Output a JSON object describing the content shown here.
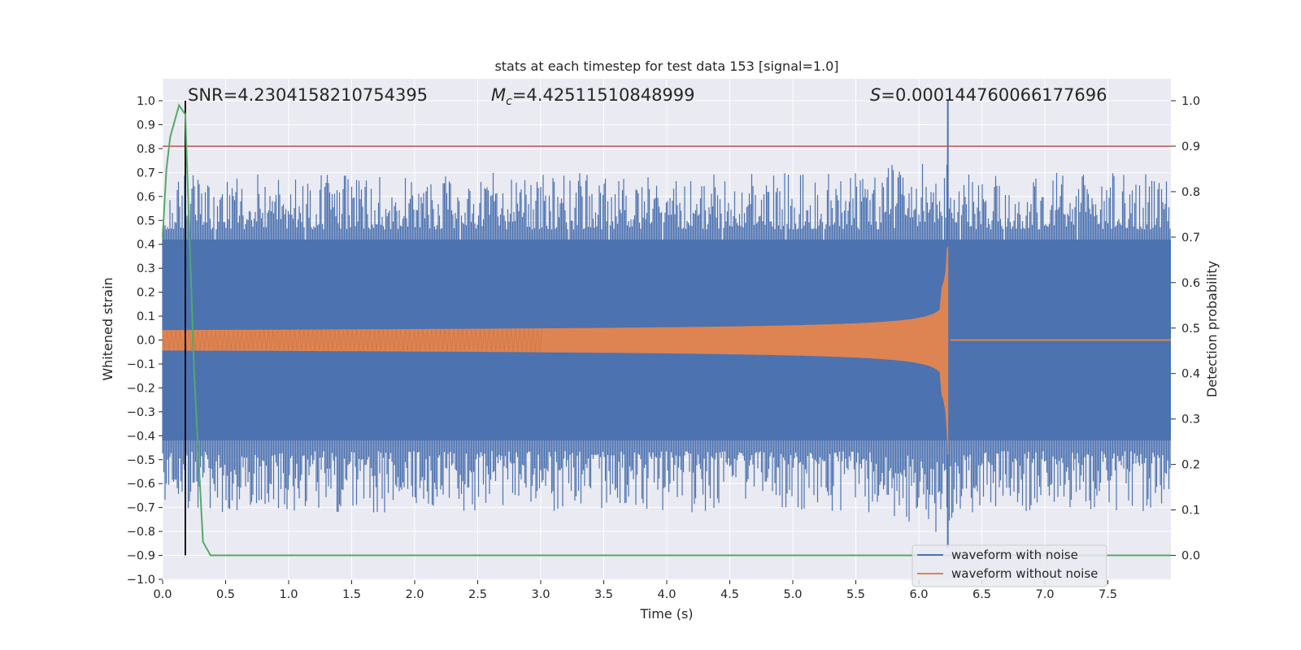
{
  "chart_data": {
    "type": "line",
    "title": "stats at each timestep for test data 153 [signal=1.0]",
    "xlabel": "Time (s)",
    "ylabel": "Whitened strain",
    "y2label": "Detection probability",
    "xlim": [
      0.0,
      8.0
    ],
    "ylim": [
      -1.0,
      1.0
    ],
    "y2lim": [
      -0.05,
      1.05
    ],
    "x_ticks": [
      "0.0",
      "0.5",
      "1.0",
      "1.5",
      "2.0",
      "2.5",
      "3.0",
      "3.5",
      "4.0",
      "4.5",
      "5.0",
      "5.5",
      "6.0",
      "6.5",
      "7.0",
      "7.5"
    ],
    "y_ticks": [
      "1.0",
      "0.9",
      "0.8",
      "0.7",
      "0.6",
      "0.5",
      "0.4",
      "0.3",
      "0.2",
      "0.1",
      "0.0",
      "−0.1",
      "−0.2",
      "−0.3",
      "−0.4",
      "−0.5",
      "−0.6",
      "−0.7",
      "−0.8",
      "−0.9",
      "−1.0"
    ],
    "y2_ticks": [
      "1.0",
      "0.9",
      "0.8",
      "0.7",
      "0.6",
      "0.5",
      "0.4",
      "0.3",
      "0.2",
      "0.1",
      "0.0"
    ],
    "grid": true,
    "legend_position": "lower-right",
    "annotations": {
      "snr_label": "SNR=4.2304158210754395",
      "mc_symbol": "M",
      "mc_sub": "c",
      "mc_value": "=4.42511510848999",
      "s_symbol": "S",
      "s_value": "=0.000144760066177696"
    },
    "threshold": 0.9,
    "marker_time": 0.18,
    "merger_time": 6.23,
    "series": [
      {
        "name": "waveform with noise",
        "color": "#4c72b0",
        "axis": "left",
        "x_range": [
          0.0,
          8.0
        ],
        "envelope_max": 0.7,
        "envelope_min": -0.72,
        "core_amplitude": 0.42,
        "peak": {
          "x": 6.23,
          "y_max": 1.0,
          "y_min": -0.87
        }
      },
      {
        "name": "waveform without noise",
        "color": "#dd8452",
        "axis": "left",
        "x_range": [
          0.0,
          8.0
        ],
        "start_amplitude": 0.04,
        "peak": {
          "x": 6.23,
          "y_max": 0.39,
          "y_min": -0.48
        }
      },
      {
        "color": "#55a868",
        "axis": "right",
        "x": [
          0.0,
          0.03,
          0.06,
          0.1,
          0.13,
          0.18,
          0.25,
          0.32,
          0.38,
          0.5,
          8.0
        ],
        "values": [
          0.7,
          0.85,
          0.92,
          0.96,
          0.99,
          0.97,
          0.4,
          0.03,
          0.0,
          0.0,
          0.0
        ]
      }
    ],
    "colors": {
      "plot_bg": "#eaeaf2",
      "grid": "#ffffff",
      "threshold": "#c44e52",
      "marker": "#000000"
    }
  }
}
